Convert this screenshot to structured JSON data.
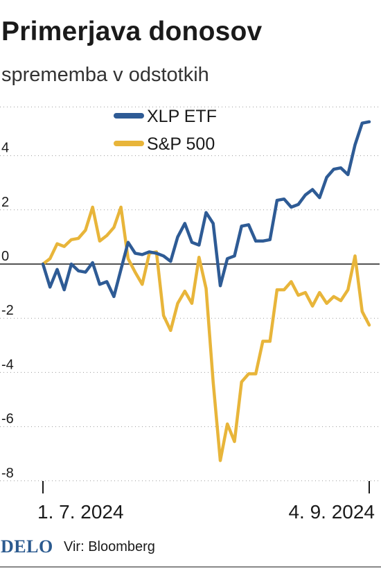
{
  "header": {
    "title": "Primerjava donosov",
    "subtitle": "sprememba v odstotkih"
  },
  "footer": {
    "logo": "DELO",
    "source": "Vir: Bloomberg"
  },
  "colors": {
    "xlp": "#2e5b95",
    "sp500": "#e8b53a",
    "axis": "#1a1a1a",
    "grid": "#9a9a9a"
  },
  "chart_data": {
    "type": "line",
    "title": "Primerjava donosov",
    "subtitle": "sprememba v odstotkih",
    "ylim": [
      -8,
      5.8
    ],
    "yticks": [
      4,
      2,
      0,
      -2,
      -4,
      -6,
      -8
    ],
    "ytick_labels": [
      "4",
      "2",
      "0",
      "-2",
      "-4",
      "-6",
      "-8"
    ],
    "x_axis_labels": [
      "1. 7. 2024",
      "4. 9. 2024"
    ],
    "grid": "dotted horizontal",
    "legend": "top-center",
    "series": [
      {
        "name": "XLP ETF",
        "color": "#2e5b95",
        "values": [
          0.0,
          -0.85,
          -0.2,
          -0.95,
          0.0,
          -0.25,
          -0.3,
          0.05,
          -0.75,
          -0.65,
          -1.2,
          -0.2,
          0.8,
          0.4,
          0.35,
          0.45,
          0.4,
          0.3,
          0.1,
          1.0,
          1.5,
          0.8,
          0.7,
          1.9,
          1.5,
          -0.8,
          0.2,
          0.3,
          1.4,
          1.45,
          0.85,
          0.85,
          0.9,
          2.35,
          2.4,
          2.1,
          2.2,
          2.55,
          2.75,
          2.45,
          3.2,
          3.5,
          3.55,
          3.3,
          4.4,
          5.2,
          5.25
        ]
      },
      {
        "name": "S&P 500",
        "color": "#e8b53a",
        "values": [
          0.0,
          0.2,
          0.75,
          0.65,
          0.9,
          0.95,
          1.25,
          2.1,
          0.85,
          1.05,
          1.35,
          2.1,
          0.2,
          -0.3,
          -0.75,
          0.4,
          0.45,
          -1.9,
          -2.45,
          -1.45,
          -1.0,
          -1.45,
          0.25,
          -0.9,
          -4.35,
          -7.25,
          -5.9,
          -6.55,
          -4.35,
          -4.05,
          -4.05,
          -2.85,
          -2.85,
          -0.95,
          -0.95,
          -0.65,
          -1.15,
          -1.05,
          -1.55,
          -1.05,
          -1.45,
          -1.2,
          -1.35,
          -0.95,
          0.3,
          -1.75,
          -2.25
        ]
      }
    ]
  }
}
